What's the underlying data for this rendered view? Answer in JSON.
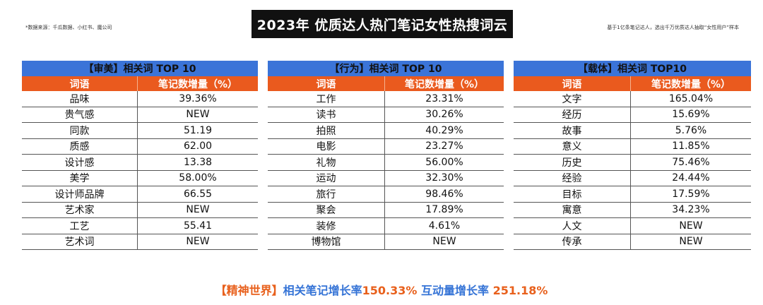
{
  "header": {
    "source_note": "*数据来源：千瓜数据、小红书、魔公司",
    "title": "2023年 优质达人热门笔记女性热搜词云",
    "method_note": "基于1亿条笔记达人，选出千万优质达人抽取“女性用户”样本"
  },
  "tables": [
    {
      "title": "【审美】相关词 TOP 10",
      "col_word": "词语",
      "col_growth": "笔记数增量（%）",
      "rows": [
        {
          "word": "品味",
          "value": "39.36%"
        },
        {
          "word": "贵气感",
          "value": "NEW"
        },
        {
          "word": "同款",
          "value": "51.19"
        },
        {
          "word": "质感",
          "value": "62.00"
        },
        {
          "word": "设计感",
          "value": "13.38"
        },
        {
          "word": "美学",
          "value": "58.00%"
        },
        {
          "word": "设计师品牌",
          "value": "66.55"
        },
        {
          "word": "艺术家",
          "value": "NEW"
        },
        {
          "word": "工艺",
          "value": "55.41"
        },
        {
          "word": "艺术词",
          "value": "NEW"
        }
      ]
    },
    {
      "title": "【行为】相关词 TOP 10",
      "col_word": "词语",
      "col_growth": "笔记数增量（%）",
      "rows": [
        {
          "word": "工作",
          "value": "23.31%"
        },
        {
          "word": "读书",
          "value": "30.26%"
        },
        {
          "word": "拍照",
          "value": "40.29%"
        },
        {
          "word": "电影",
          "value": "23.27%"
        },
        {
          "word": "礼物",
          "value": "56.00%"
        },
        {
          "word": "运动",
          "value": "32.30%"
        },
        {
          "word": "旅行",
          "value": "98.46%"
        },
        {
          "word": "聚会",
          "value": "17.89%"
        },
        {
          "word": "装修",
          "value": "4.61%"
        },
        {
          "word": "博物馆",
          "value": "NEW"
        }
      ]
    },
    {
      "title": "【载体】相关词 TOP10",
      "col_word": "词语",
      "col_growth": "笔记数增量（%）",
      "rows": [
        {
          "word": "文字",
          "value": "165.04%"
        },
        {
          "word": "经历",
          "value": "15.69%"
        },
        {
          "word": "故事",
          "value": "5.76%"
        },
        {
          "word": "意义",
          "value": "11.85%"
        },
        {
          "word": "历史",
          "value": "75.46%"
        },
        {
          "word": "经验",
          "value": "24.44%"
        },
        {
          "word": "目标",
          "value": "17.59%"
        },
        {
          "word": "寓意",
          "value": "34.23%"
        },
        {
          "word": "人文",
          "value": "NEW"
        },
        {
          "word": "传承",
          "value": "NEW"
        }
      ]
    }
  ],
  "footer": {
    "category": "【精神世界】",
    "note_growth_label": "相关笔记增长率",
    "note_growth_value": "150.33%",
    "interaction_label": "互动量增长率",
    "interaction_value": "251.18%"
  }
}
